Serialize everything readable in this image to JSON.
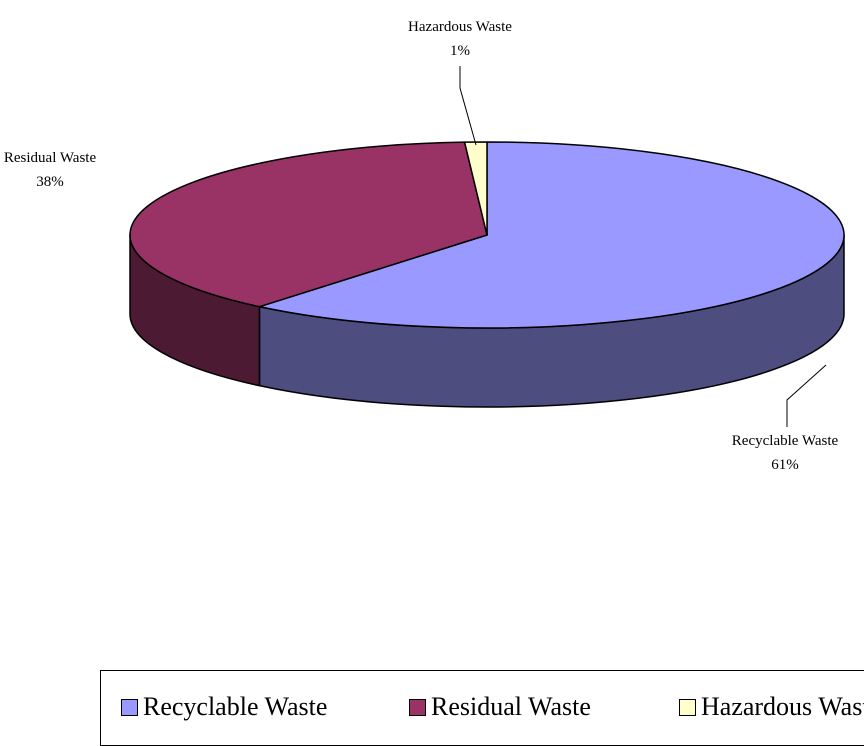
{
  "chart_data": {
    "type": "pie",
    "style": "3d",
    "title": "",
    "legend_position": "bottom",
    "slices": [
      {
        "label": "Recyclable Waste",
        "value": 61,
        "display": "61%",
        "color": "#9999ff",
        "side_color": "#4d4d7f"
      },
      {
        "label": "Residual Waste",
        "value": 38,
        "display": "38%",
        "color": "#993366",
        "side_color": "#4d1a33"
      },
      {
        "label": "Hazardous Waste",
        "value": 1,
        "display": "1%",
        "color": "#ffffcc",
        "side_color": "#80806a"
      }
    ]
  },
  "legend": {
    "items": [
      "Recyclable Waste",
      "Residual Waste",
      "Hazardous Waste"
    ]
  }
}
